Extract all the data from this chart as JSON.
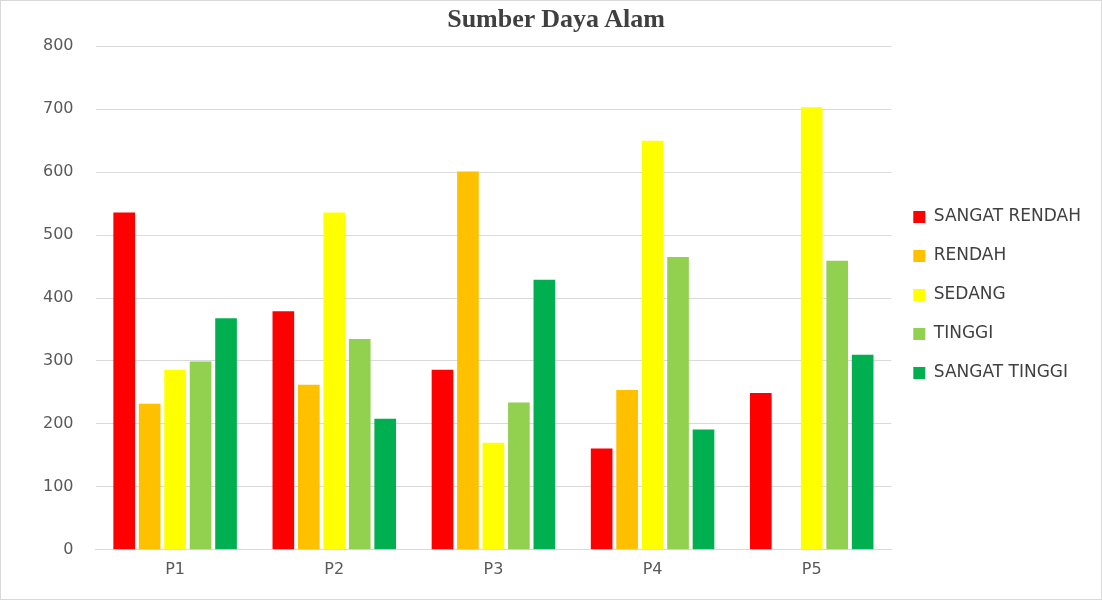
{
  "chart_data": {
    "type": "bar",
    "title": "Sumber Daya Alam",
    "categories": [
      "P1",
      "P2",
      "P3",
      "P4",
      "P5"
    ],
    "series": [
      {
        "name": "SANGAT RENDAH",
        "color": "#ff0000",
        "values": [
          536,
          379,
          286,
          161,
          249
        ]
      },
      {
        "name": "RENDAH",
        "color": "#ffc000",
        "values": [
          232,
          262,
          601,
          254,
          0
        ]
      },
      {
        "name": "SEDANG",
        "color": "#ffff00",
        "values": [
          286,
          536,
          170,
          650,
          703
        ]
      },
      {
        "name": "TINGGI",
        "color": "#92d050",
        "values": [
          299,
          335,
          234,
          465,
          459
        ]
      },
      {
        "name": "SANGAT TINGGI",
        "color": "#00b050",
        "values": [
          368,
          208,
          429,
          191,
          310
        ]
      }
    ],
    "ylim": [
      0,
      800
    ],
    "yticks": [
      0,
      100,
      200,
      300,
      400,
      500,
      600,
      700,
      800
    ],
    "grid": "y",
    "legend": "right"
  }
}
